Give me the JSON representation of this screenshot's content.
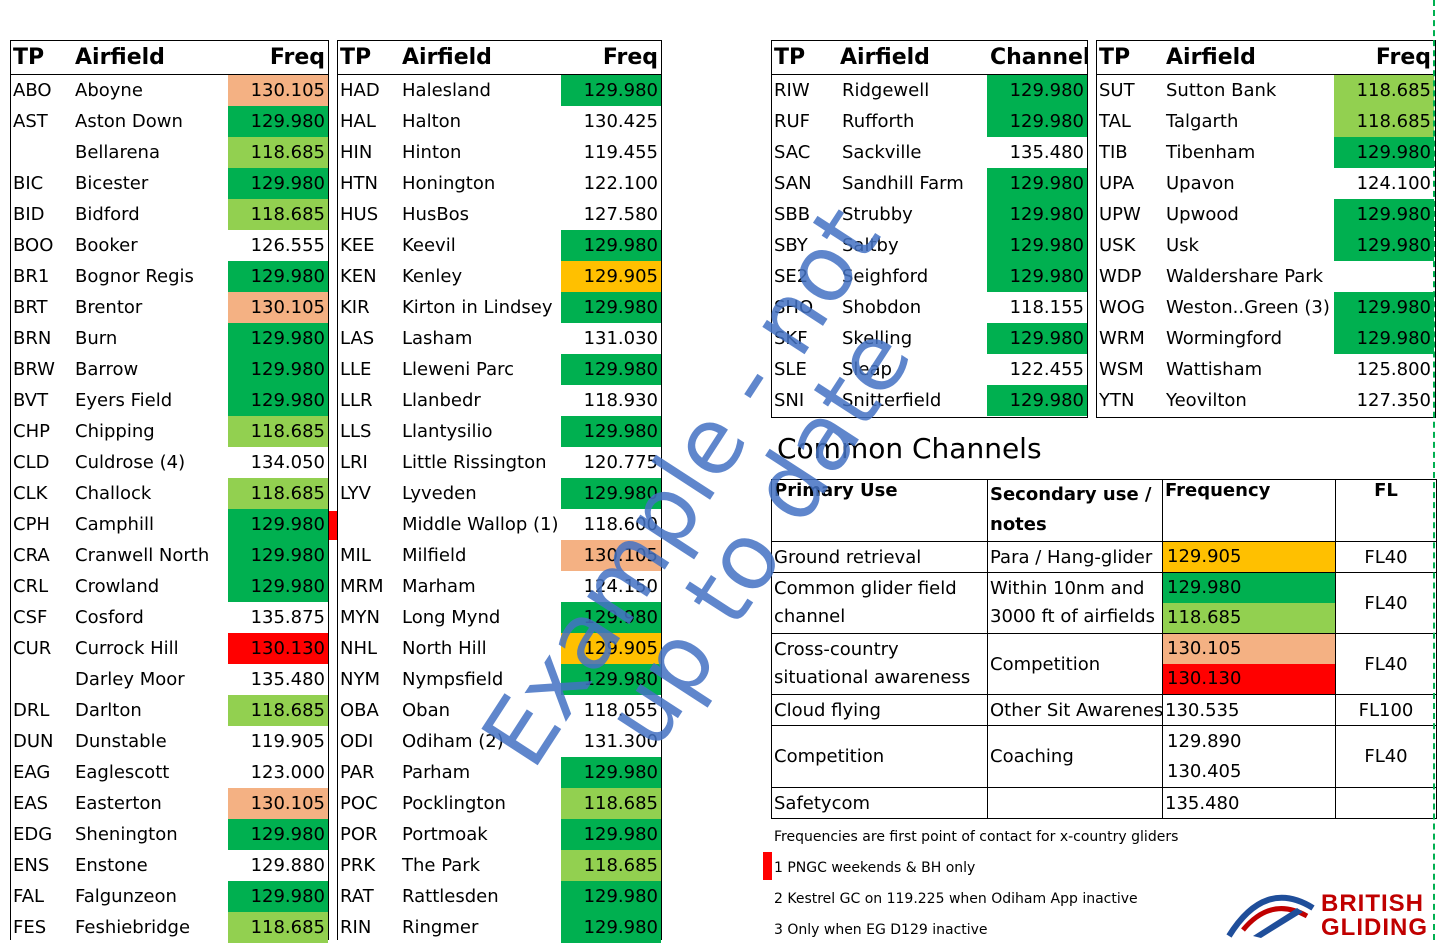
{
  "tables": {
    "t1": {
      "headers": {
        "tp": "TP",
        "airfield": "Airfield",
        "freq": "Freq"
      },
      "rows": [
        {
          "tp": "ABO",
          "airfield": "Aboyne",
          "freq": "130.105",
          "color": "#f4b183"
        },
        {
          "tp": "AST",
          "airfield": "Aston Down",
          "freq": "129.980",
          "color": "#00b050"
        },
        {
          "tp": "",
          "airfield": "Bellarena",
          "freq": "118.685",
          "color": "#92d050"
        },
        {
          "tp": "BIC",
          "airfield": "Bicester",
          "freq": "129.980",
          "color": "#00b050"
        },
        {
          "tp": "BID",
          "airfield": "Bidford",
          "freq": "118.685",
          "color": "#92d050"
        },
        {
          "tp": "BOO",
          "airfield": "Booker",
          "freq": "126.555",
          "color": "#ffffff"
        },
        {
          "tp": "BR1",
          "airfield": "Bognor Regis",
          "freq": "129.980",
          "color": "#00b050"
        },
        {
          "tp": "BRT",
          "airfield": "Brentor",
          "freq": "130.105",
          "color": "#f4b183"
        },
        {
          "tp": "BRN",
          "airfield": "Burn",
          "freq": "129.980",
          "color": "#00b050"
        },
        {
          "tp": "BRW",
          "airfield": "Barrow",
          "freq": "129.980",
          "color": "#00b050"
        },
        {
          "tp": "BVT",
          "airfield": "Eyers Field",
          "freq": "129.980",
          "color": "#00b050"
        },
        {
          "tp": "CHP",
          "airfield": "Chipping",
          "freq": "118.685",
          "color": "#92d050"
        },
        {
          "tp": "CLD",
          "airfield": "Culdrose (4)",
          "freq": "134.050",
          "color": "#ffffff"
        },
        {
          "tp": "CLK",
          "airfield": "Challock",
          "freq": "118.685",
          "color": "#92d050"
        },
        {
          "tp": "CPH",
          "airfield": "Camphill",
          "freq": "129.980",
          "color": "#00b050"
        },
        {
          "tp": "CRA",
          "airfield": "Cranwell North",
          "freq": "129.980",
          "color": "#00b050"
        },
        {
          "tp": "CRL",
          "airfield": "Crowland",
          "freq": "129.980",
          "color": "#00b050"
        },
        {
          "tp": "CSF",
          "airfield": "Cosford",
          "freq": "135.875",
          "color": "#ffffff"
        },
        {
          "tp": "CUR",
          "airfield": "Currock Hill",
          "freq": "130.130",
          "color": "#ff0000"
        },
        {
          "tp": "",
          "airfield": "Darley Moor",
          "freq": "135.480",
          "color": "#ffffff"
        },
        {
          "tp": "DRL",
          "airfield": "Darlton",
          "freq": "118.685",
          "color": "#92d050"
        },
        {
          "tp": "DUN",
          "airfield": "Dunstable",
          "freq": "119.905",
          "color": "#ffffff"
        },
        {
          "tp": "EAG",
          "airfield": "Eaglescott",
          "freq": "123.000",
          "color": "#ffffff"
        },
        {
          "tp": "EAS",
          "airfield": "Easterton",
          "freq": "130.105",
          "color": "#f4b183"
        },
        {
          "tp": "EDG",
          "airfield": "Shenington",
          "freq": "129.980",
          "color": "#00b050"
        },
        {
          "tp": "ENS",
          "airfield": "Enstone",
          "freq": "129.880",
          "color": "#ffffff"
        },
        {
          "tp": "FAL",
          "airfield": "Falgunzeon",
          "freq": "129.980",
          "color": "#00b050"
        },
        {
          "tp": "FES",
          "airfield": "Feshiebridge",
          "freq": "118.685",
          "color": "#92d050"
        }
      ]
    },
    "t2": {
      "headers": {
        "tp": "TP",
        "airfield": "Airfield",
        "freq": "Freq"
      },
      "rows": [
        {
          "tp": "HAD",
          "airfield": "Halesland",
          "freq": "129.980",
          "color": "#00b050"
        },
        {
          "tp": "HAL",
          "airfield": "Halton",
          "freq": "130.425",
          "color": "#ffffff"
        },
        {
          "tp": "HIN",
          "airfield": "Hinton",
          "freq": "119.455",
          "color": "#ffffff"
        },
        {
          "tp": "HTN",
          "airfield": "Honington",
          "freq": "122.100",
          "color": "#ffffff"
        },
        {
          "tp": "HUS",
          "airfield": "HusBos",
          "freq": "127.580",
          "color": "#ffffff"
        },
        {
          "tp": "KEE",
          "airfield": "Keevil",
          "freq": "129.980",
          "color": "#00b050"
        },
        {
          "tp": "KEN",
          "airfield": "Kenley",
          "freq": "129.905",
          "color": "#ffc000"
        },
        {
          "tp": "KIR",
          "airfield": "Kirton in Lindsey",
          "freq": "129.980",
          "color": "#00b050"
        },
        {
          "tp": "LAS",
          "airfield": "Lasham",
          "freq": "131.030",
          "color": "#ffffff"
        },
        {
          "tp": "LLE",
          "airfield": "Lleweni Parc",
          "freq": "129.980",
          "color": "#00b050"
        },
        {
          "tp": "LLR",
          "airfield": "Llanbedr",
          "freq": "118.930",
          "color": "#ffffff"
        },
        {
          "tp": "LLS",
          "airfield": "Llantysilio",
          "freq": "129.980",
          "color": "#00b050"
        },
        {
          "tp": "LRI",
          "airfield": "Little Rissington",
          "freq": "120.775",
          "color": "#ffffff"
        },
        {
          "tp": "LYV",
          "airfield": "Lyveden",
          "freq": "129.980",
          "color": "#00b050"
        },
        {
          "tp": "",
          "airfield": "Middle Wallop (1)",
          "freq": "118.600",
          "color": "#ffffff"
        },
        {
          "tp": "MIL",
          "airfield": "Milfield",
          "freq": "130.105",
          "color": "#f4b183"
        },
        {
          "tp": "MRM",
          "airfield": "Marham",
          "freq": "124.150",
          "color": "#ffffff"
        },
        {
          "tp": "MYN",
          "airfield": "Long Mynd",
          "freq": "129.980",
          "color": "#00b050"
        },
        {
          "tp": "NHL",
          "airfield": "North Hill",
          "freq": "129.905",
          "color": "#ffc000"
        },
        {
          "tp": "NYM",
          "airfield": "Nympsfield",
          "freq": "129.980",
          "color": "#00b050"
        },
        {
          "tp": "OBA",
          "airfield": "Oban",
          "freq": "118.055",
          "color": "#ffffff"
        },
        {
          "tp": "ODI",
          "airfield": "Odiham (2)",
          "freq": "131.300",
          "color": "#ffffff"
        },
        {
          "tp": "PAR",
          "airfield": "Parham",
          "freq": "129.980",
          "color": "#00b050"
        },
        {
          "tp": "POC",
          "airfield": "Pocklington",
          "freq": "118.685",
          "color": "#92d050"
        },
        {
          "tp": "POR",
          "airfield": "Portmoak",
          "freq": "129.980",
          "color": "#00b050"
        },
        {
          "tp": "PRK",
          "airfield": "The Park",
          "freq": "118.685",
          "color": "#92d050"
        },
        {
          "tp": "RAT",
          "airfield": "Rattlesden",
          "freq": "129.980",
          "color": "#00b050"
        },
        {
          "tp": "RIN",
          "airfield": "Ringmer",
          "freq": "129.980",
          "color": "#00b050"
        }
      ]
    },
    "t3": {
      "headers": {
        "tp": "TP",
        "airfield": "Airfield",
        "freq": "Channel"
      },
      "rows": [
        {
          "tp": "RIW",
          "airfield": "Ridgewell",
          "freq": "129.980",
          "color": "#00b050"
        },
        {
          "tp": "RUF",
          "airfield": "Rufforth",
          "freq": "129.980",
          "color": "#00b050"
        },
        {
          "tp": "SAC",
          "airfield": "Sackville",
          "freq": "135.480",
          "color": "#ffffff"
        },
        {
          "tp": "SAN",
          "airfield": "Sandhill Farm",
          "freq": "129.980",
          "color": "#00b050"
        },
        {
          "tp": "SBB",
          "airfield": "Strubby",
          "freq": "129.980",
          "color": "#00b050"
        },
        {
          "tp": "SBY",
          "airfield": "Saltby",
          "freq": "129.980",
          "color": "#00b050"
        },
        {
          "tp": "SE2",
          "airfield": "Seighford",
          "freq": "129.980",
          "color": "#00b050"
        },
        {
          "tp": "SHO",
          "airfield": "Shobdon",
          "freq": "118.155",
          "color": "#ffffff"
        },
        {
          "tp": "SKF",
          "airfield": "Skelling",
          "freq": "129.980",
          "color": "#00b050"
        },
        {
          "tp": "SLE",
          "airfield": "Sleap",
          "freq": "122.455",
          "color": "#ffffff"
        },
        {
          "tp": "SNI",
          "airfield": "Snitterfield",
          "freq": "129.980",
          "color": "#00b050"
        }
      ]
    },
    "t4": {
      "headers": {
        "tp": "TP",
        "airfield": "Airfield",
        "freq": "Freq"
      },
      "rows": [
        {
          "tp": "SUT",
          "airfield": "Sutton Bank",
          "freq": "118.685",
          "color": "#92d050"
        },
        {
          "tp": "TAL",
          "airfield": "Talgarth",
          "freq": "118.685",
          "color": "#92d050"
        },
        {
          "tp": "TIB",
          "airfield": "Tibenham",
          "freq": "129.980",
          "color": "#00b050"
        },
        {
          "tp": "UPA",
          "airfield": "Upavon",
          "freq": "124.100",
          "color": "#ffffff"
        },
        {
          "tp": "UPW",
          "airfield": "Upwood",
          "freq": "129.980",
          "color": "#00b050"
        },
        {
          "tp": "USK",
          "airfield": "Usk",
          "freq": "129.980",
          "color": "#00b050"
        },
        {
          "tp": "WDP",
          "airfield": "Waldershare Park",
          "freq": "",
          "color": "#ffffff"
        },
        {
          "tp": "WOG",
          "airfield": "Weston..Green (3)",
          "freq": "129.980",
          "color": "#00b050"
        },
        {
          "tp": "WRM",
          "airfield": "Wormingford",
          "freq": "129.980",
          "color": "#00b050"
        },
        {
          "tp": "WSM",
          "airfield": "Wattisham",
          "freq": "125.800",
          "color": "#ffffff"
        },
        {
          "tp": "YTN",
          "airfield": "Yeovilton",
          "freq": "127.350",
          "color": "#ffffff"
        }
      ]
    }
  },
  "common": {
    "title": "Common Channels",
    "headers": {
      "primary": "Primary Use",
      "secondary": "Secondary use / notes",
      "frequency": "Frequency",
      "fl": "FL"
    },
    "rows": {
      "r1": {
        "primary": "Ground retrieval",
        "secondary": "Para / Hang-glider",
        "f1": "129.905",
        "f1_color": "#ffc000",
        "fl": "FL40"
      },
      "r2": {
        "primary": "Common glider field channel",
        "secondary": "Within 10nm and 3000 ft of  airfields",
        "f1": "129.980",
        "f1_color": "#00b050",
        "f2": "118.685",
        "f2_color": "#92d050",
        "fl": "FL40"
      },
      "r3": {
        "primary": "Cross-country situational awareness",
        "secondary": "Competition",
        "f1": "130.105",
        "f1_color": "#f4b183",
        "f2": "130.130",
        "f2_color": "#ff0000",
        "fl": "FL40"
      },
      "r4": {
        "primary": "Cloud flying",
        "secondary": "Other Sit Awarenes",
        "f1": "130.535",
        "fl": "FL100"
      },
      "r5": {
        "primary": "Competition",
        "secondary": "Coaching",
        "f1": "129.890",
        "f2": "130.405",
        "fl": "FL40"
      },
      "r6": {
        "primary": "Safetycom",
        "secondary": "",
        "f1": "135.480",
        "fl": ""
      }
    }
  },
  "notes": {
    "n0": "Frequencies are first point of contact for x-country gliders",
    "n1": "1 PNGC weekends & BH only",
    "n2": "2 Kestrel GC on 119.225 when Odiham App inactive",
    "n3": "3 Only when EG D129 inactive"
  },
  "watermark": {
    "line1": "Example - not",
    "line2": "up to date"
  },
  "logo": {
    "line1": "BRITISH",
    "line2": "GLIDING"
  }
}
